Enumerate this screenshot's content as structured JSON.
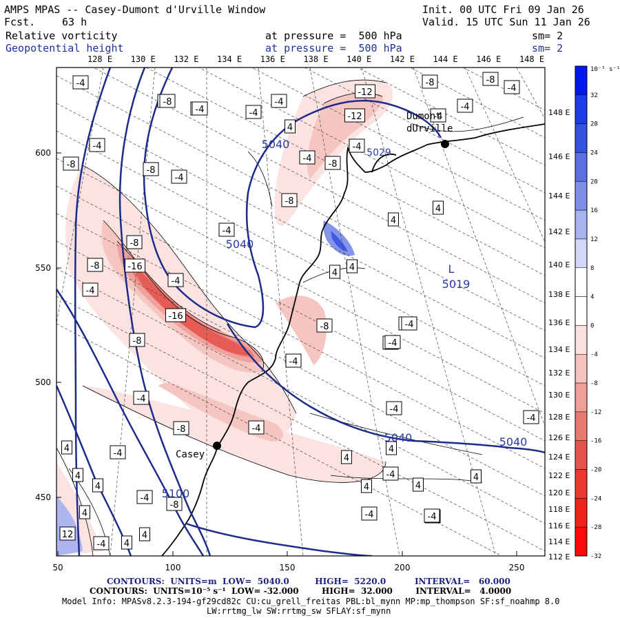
{
  "header": {
    "title": "AMPS MPAS -- Casey-Dumont d'Urville Window",
    "forecast_label": "Fcst.",
    "forecast_hours": "63 h",
    "init": "Init. 00 UTC Fri 09 Jan 26",
    "valid": "Valid. 15 UTC Sun 11 Jan 26",
    "field1_name": "Relative vorticity",
    "field1_level": "at pressure =  500 hPa",
    "field1_sm": "sm= 2",
    "field2_name": "Geopotential height",
    "field2_level": "at pressure =  500 hPa",
    "field2_sm": "sm= 2"
  },
  "top_longitudes": [
    "128 E",
    "130 E",
    "132 E",
    "134 E",
    "136 E",
    "138 E",
    "140 E",
    "142 E",
    "144 E",
    "146 E",
    "148 E"
  ],
  "right_longitudes": [
    "148 E",
    "146 E",
    "144 E",
    "142 E",
    "140 E",
    "138 E",
    "136 E",
    "134 E",
    "132 E",
    "130 E",
    "128 E",
    "126 E",
    "124 E",
    "122 E",
    "120 E",
    "118 E",
    "116 E",
    "114 E",
    "112 E"
  ],
  "axes": {
    "x_ticks": [
      "50",
      "100",
      "150",
      "200",
      "250"
    ],
    "y_ticks": [
      "600",
      "550",
      "500",
      "450"
    ]
  },
  "colorbar": {
    "unit_label": "10⁻⁵ s⁻¹",
    "labels": [
      "32",
      "28",
      "24",
      "20",
      "16",
      "12",
      "8",
      "4",
      "0",
      "-4",
      "-8",
      "-12",
      "-16",
      "-20",
      "-24",
      "-28",
      "-32"
    ],
    "colors": [
      "#0018f0",
      "#1c3ce8",
      "#3452e0",
      "#5a70e0",
      "#7f8ee8",
      "#a9b2f0",
      "#d2d7f8",
      "#ffffff",
      "#ffffff",
      "#fbe2e0",
      "#f5c2be",
      "#ef9e98",
      "#e87a72",
      "#e4544c",
      "#ea3a30",
      "#f22418",
      "#ff0a0a"
    ]
  },
  "stations": {
    "casey": "Casey",
    "dumont": "Dumont\ndUrville"
  },
  "contour_labels": {
    "height": [
      "5040",
      "5040",
      "5040",
      "5040",
      "5100"
    ],
    "low": "L",
    "low_value": "5019",
    "dumont_value": "5029",
    "vort": [
      "-4",
      "-4",
      "-4",
      "-8",
      "-4",
      "-4",
      "-8",
      "-8",
      "-4",
      "-8",
      "-12",
      "-12",
      "-8",
      "-8",
      "-4",
      "-4",
      "-4",
      "4",
      "-4",
      "-8",
      "-4",
      "4",
      "4",
      "-4",
      "-8",
      "-16",
      "-8",
      "-8",
      "-4",
      "-16",
      "-8",
      "-4",
      "-4",
      "-4",
      "-4",
      "-4",
      "-8",
      "-8",
      "-4",
      "-4",
      "4",
      "4",
      "4",
      "4",
      "-4",
      "-4",
      "4",
      "4",
      "-4",
      "-4",
      "4",
      "-4",
      "-4",
      "4",
      "12",
      "-4",
      "4",
      "4",
      "-8",
      "-4",
      "4",
      "4",
      "4",
      "-4",
      "-4",
      "-4",
      "4"
    ]
  },
  "footer": {
    "contour1": "CONTOURS:  UNITS=m  LOW=  5040.0         HIGH=  5220.0          INTERVAL=   60.000",
    "contour2": "CONTOURS:  UNITS=10⁻⁵ s⁻¹  LOW= -32.000        HIGH=  32.000        INTERVAL=   4.0000",
    "model_info": "Model Info: MPASv8.2.3-194-gf29cd82c CU:cu_grell_freitas PBL:bl_mynn MP:mp_thompson SF:sf_noahmp 8.0",
    "model_info2": "LW:rrtmg_lw SW:rrtmg_sw SFLAY:sf_mynn"
  }
}
